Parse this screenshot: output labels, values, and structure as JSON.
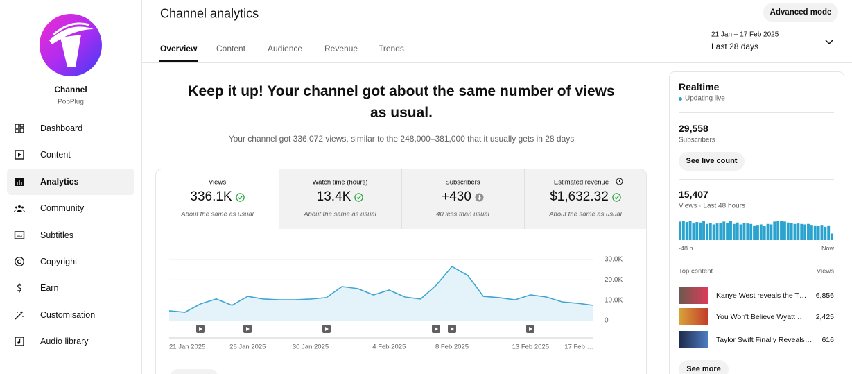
{
  "sidebar": {
    "channel_label": "Channel",
    "channel_name": "PopPlug",
    "nav": [
      "Dashboard",
      "Content",
      "Analytics",
      "Community",
      "Subtitles",
      "Copyright",
      "Earn",
      "Customisation",
      "Audio library"
    ],
    "active": 2
  },
  "header": {
    "title": "Channel analytics",
    "advanced_button": "Advanced mode",
    "date_range": "21 Jan – 17 Feb 2025",
    "period": "Last 28 days",
    "tabs": [
      "Overview",
      "Content",
      "Audience",
      "Revenue",
      "Trends"
    ],
    "active_tab": 0
  },
  "summary": {
    "headline": "Keep it up! Your channel got about the same number of views as usual.",
    "detail": "Your channel got 336,072 views, similar to the 248,000–381,000 that it usually gets in 28 days"
  },
  "metrics": [
    {
      "label": "Views",
      "value": "336.1K",
      "note": "About the same as usual",
      "status": "ok"
    },
    {
      "label": "Watch time (hours)",
      "value": "13.4K",
      "note": "About the same as usual",
      "status": "ok"
    },
    {
      "label": "Subscribers",
      "value": "+430",
      "note": "40 less than usual",
      "status": "down"
    },
    {
      "label": "Estimated revenue",
      "value": "$1,632.32",
      "note": "About the same as usual",
      "status": "ok"
    }
  ],
  "chart_data": [
    {
      "type": "line",
      "categories": [
        "21 Jan 2025",
        null,
        null,
        null,
        null,
        "26 Jan 2025",
        null,
        null,
        null,
        "30 Jan 2025",
        null,
        null,
        null,
        null,
        "4 Feb 2025",
        null,
        null,
        null,
        "8 Feb 2025",
        null,
        null,
        null,
        null,
        "13 Feb 2025",
        null,
        null,
        null,
        "17 Feb …"
      ],
      "values": [
        4800,
        4100,
        8200,
        10600,
        7500,
        11900,
        10600,
        10200,
        10200,
        10600,
        11300,
        16700,
        15700,
        12600,
        15000,
        11600,
        10600,
        17400,
        26600,
        22200,
        11900,
        11300,
        10200,
        12600,
        11600,
        9200,
        8500,
        7500
      ],
      "color": "#3ea6d0",
      "area": true,
      "ylim": [
        0,
        30000
      ],
      "yticks": [
        0,
        {
          "value": 10000,
          "label": "10.0K"
        },
        {
          "value": 20000,
          "label": "20.0K"
        },
        {
          "value": 30000,
          "label": "30.0K"
        }
      ],
      "grid": true
    },
    {
      "type": "bar",
      "values": [
        390,
        410,
        380,
        400,
        350,
        380,
        370,
        400,
        340,
        360,
        330,
        350,
        360,
        390,
        360,
        410,
        340,
        370,
        330,
        360,
        350,
        340,
        310,
        320,
        330,
        300,
        340,
        330,
        390,
        400,
        410,
        390,
        370,
        360,
        340,
        350,
        340,
        330,
        340,
        320,
        310,
        300,
        320,
        280,
        310,
        140
      ],
      "color": "#2aa3cf"
    }
  ],
  "realtime": {
    "title": "Realtime",
    "status": "Updating live",
    "subscribers": "29,558",
    "subscribers_label": "Subscribers",
    "live_button": "See live count",
    "views": "15,407",
    "views_label": "Views · Last 48 hours",
    "start_label": "-48 h",
    "end_label": "Now",
    "top_content_label": "Top content",
    "views_column": "Views",
    "top_content": [
      {
        "title": "Kanye West reveals the T…",
        "views": "6,856"
      },
      {
        "title": "You Won't Believe Wyatt …",
        "views": "2,425"
      },
      {
        "title": "Taylor Swift Finally Reveals…",
        "views": "616"
      }
    ],
    "more_button": "See more"
  }
}
